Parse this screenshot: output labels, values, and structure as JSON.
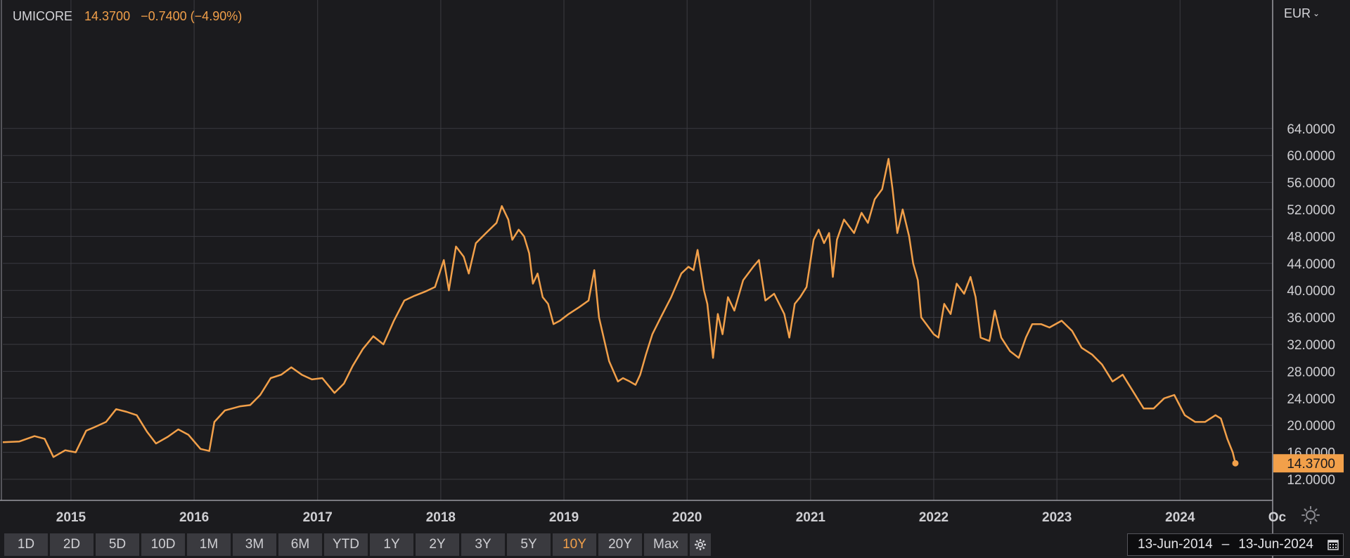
{
  "header": {
    "symbol": "UMICORE",
    "price": "14.3700",
    "change": "−0.7400 (−4.90%)"
  },
  "currency_selector": {
    "label": "EUR"
  },
  "range_buttons": [
    {
      "label": "1D",
      "active": false
    },
    {
      "label": "2D",
      "active": false
    },
    {
      "label": "5D",
      "active": false
    },
    {
      "label": "10D",
      "active": false
    },
    {
      "label": "1M",
      "active": false
    },
    {
      "label": "3M",
      "active": false
    },
    {
      "label": "6M",
      "active": false
    },
    {
      "label": "YTD",
      "active": false
    },
    {
      "label": "1Y",
      "active": false
    },
    {
      "label": "2Y",
      "active": false
    },
    {
      "label": "3Y",
      "active": false
    },
    {
      "label": "5Y",
      "active": false
    },
    {
      "label": "10Y",
      "active": true
    },
    {
      "label": "20Y",
      "active": false
    },
    {
      "label": "Max",
      "active": false
    }
  ],
  "date_range": {
    "start": "13-Jun-2014",
    "end": "13-Jun-2024",
    "separator": "–"
  },
  "icons": {
    "settings": "gear-icon",
    "calendar": "calendar-icon",
    "chart_settings": "sun-gear-icon"
  },
  "colors": {
    "background": "#1b1b1e",
    "line": "#f2a04a",
    "grid": "#3b3b40",
    "text": "#cfcfd3"
  },
  "chart_data": {
    "type": "line",
    "title": "",
    "xlabel": "",
    "ylabel": "",
    "x_tick_labels": [
      "2015",
      "2016",
      "2017",
      "2018",
      "2019",
      "2020",
      "2021",
      "2022",
      "2023",
      "2024",
      "Oc"
    ],
    "y_tick_labels": [
      "12.0000",
      "16.0000",
      "20.0000",
      "24.0000",
      "28.0000",
      "32.0000",
      "36.0000",
      "40.0000",
      "44.0000",
      "48.0000",
      "52.0000",
      "56.0000",
      "60.0000",
      "64.0000"
    ],
    "ylim": [
      10,
      66
    ],
    "xlim": [
      "2014-06-13",
      "2024-10-31"
    ],
    "last_value_label": "14.3700",
    "grid": true,
    "series": [
      {
        "values": [
          [
            "2014-06-13",
            17.5
          ],
          [
            "2014-08-01",
            17.6
          ],
          [
            "2014-09-15",
            18.4
          ],
          [
            "2014-10-15",
            18.0
          ],
          [
            "2014-11-10",
            15.3
          ],
          [
            "2014-12-15",
            16.3
          ],
          [
            "2015-01-15",
            16.0
          ],
          [
            "2015-02-15",
            19.2
          ],
          [
            "2015-03-15",
            19.8
          ],
          [
            "2015-04-15",
            20.5
          ],
          [
            "2015-05-15",
            22.4
          ],
          [
            "2015-06-15",
            22.0
          ],
          [
            "2015-07-15",
            21.5
          ],
          [
            "2015-08-15",
            19.0
          ],
          [
            "2015-09-10",
            17.3
          ],
          [
            "2015-10-15",
            18.3
          ],
          [
            "2015-11-15",
            19.4
          ],
          [
            "2015-12-15",
            18.6
          ],
          [
            "2016-01-20",
            16.5
          ],
          [
            "2016-02-15",
            16.2
          ],
          [
            "2016-03-01",
            20.5
          ],
          [
            "2016-04-01",
            22.2
          ],
          [
            "2016-05-15",
            22.8
          ],
          [
            "2016-06-15",
            23.0
          ],
          [
            "2016-07-15",
            24.5
          ],
          [
            "2016-08-15",
            27.0
          ],
          [
            "2016-09-15",
            27.5
          ],
          [
            "2016-10-15",
            28.6
          ],
          [
            "2016-11-15",
            27.5
          ],
          [
            "2016-12-15",
            26.8
          ],
          [
            "2017-01-15",
            27.0
          ],
          [
            "2017-02-20",
            24.8
          ],
          [
            "2017-03-20",
            26.2
          ],
          [
            "2017-04-15",
            28.8
          ],
          [
            "2017-05-15",
            31.3
          ],
          [
            "2017-06-15",
            33.2
          ],
          [
            "2017-07-15",
            32.0
          ],
          [
            "2017-08-15",
            35.5
          ],
          [
            "2017-09-15",
            38.5
          ],
          [
            "2017-10-15",
            39.2
          ],
          [
            "2017-11-15",
            39.8
          ],
          [
            "2017-12-15",
            40.5
          ],
          [
            "2018-01-10",
            44.5
          ],
          [
            "2018-01-25",
            40.0
          ],
          [
            "2018-02-15",
            46.5
          ],
          [
            "2018-03-10",
            45.0
          ],
          [
            "2018-03-25",
            42.5
          ],
          [
            "2018-04-15",
            47.0
          ],
          [
            "2018-05-15",
            48.5
          ],
          [
            "2018-06-15",
            50.0
          ],
          [
            "2018-07-01",
            52.5
          ],
          [
            "2018-07-20",
            50.5
          ],
          [
            "2018-08-01",
            47.5
          ],
          [
            "2018-08-20",
            49.0
          ],
          [
            "2018-09-05",
            48.0
          ],
          [
            "2018-09-20",
            45.5
          ],
          [
            "2018-10-01",
            41.0
          ],
          [
            "2018-10-15",
            42.5
          ],
          [
            "2018-10-30",
            39.0
          ],
          [
            "2018-11-15",
            38.0
          ],
          [
            "2018-12-01",
            35.0
          ],
          [
            "2018-12-20",
            35.5
          ],
          [
            "2019-01-15",
            36.5
          ],
          [
            "2019-02-15",
            37.5
          ],
          [
            "2019-03-15",
            38.5
          ],
          [
            "2019-04-01",
            43.0
          ],
          [
            "2019-04-15",
            36.0
          ],
          [
            "2019-05-15",
            29.5
          ],
          [
            "2019-06-10",
            26.5
          ],
          [
            "2019-06-25",
            27.0
          ],
          [
            "2019-07-15",
            26.5
          ],
          [
            "2019-08-01",
            26.0
          ],
          [
            "2019-08-15",
            27.5
          ],
          [
            "2019-09-01",
            30.5
          ],
          [
            "2019-09-20",
            33.5
          ],
          [
            "2019-10-15",
            36.0
          ],
          [
            "2019-11-15",
            39.0
          ],
          [
            "2019-12-15",
            42.5
          ],
          [
            "2020-01-05",
            43.5
          ],
          [
            "2020-01-20",
            43.0
          ],
          [
            "2020-02-01",
            46.0
          ],
          [
            "2020-02-20",
            40.0
          ],
          [
            "2020-03-01",
            38.0
          ],
          [
            "2020-03-18",
            30.0
          ],
          [
            "2020-04-01",
            36.5
          ],
          [
            "2020-04-15",
            33.5
          ],
          [
            "2020-05-01",
            39.0
          ],
          [
            "2020-05-20",
            37.0
          ],
          [
            "2020-06-15",
            41.5
          ],
          [
            "2020-07-15",
            43.5
          ],
          [
            "2020-08-01",
            44.5
          ],
          [
            "2020-08-20",
            38.5
          ],
          [
            "2020-09-15",
            39.5
          ],
          [
            "2020-10-15",
            36.5
          ],
          [
            "2020-10-30",
            33.0
          ],
          [
            "2020-11-15",
            38.0
          ],
          [
            "2020-12-01",
            39.0
          ],
          [
            "2020-12-20",
            40.5
          ],
          [
            "2021-01-10",
            47.5
          ],
          [
            "2021-01-25",
            49.0
          ],
          [
            "2021-02-10",
            47.0
          ],
          [
            "2021-02-25",
            48.5
          ],
          [
            "2021-03-08",
            42.0
          ],
          [
            "2021-03-20",
            47.5
          ],
          [
            "2021-04-10",
            50.5
          ],
          [
            "2021-05-10",
            48.5
          ],
          [
            "2021-06-01",
            51.5
          ],
          [
            "2021-06-20",
            50.0
          ],
          [
            "2021-07-10",
            53.5
          ],
          [
            "2021-08-01",
            55.0
          ],
          [
            "2021-08-20",
            59.5
          ],
          [
            "2021-09-01",
            55.0
          ],
          [
            "2021-09-15",
            48.5
          ],
          [
            "2021-10-01",
            52.0
          ],
          [
            "2021-10-20",
            48.0
          ],
          [
            "2021-11-01",
            44.0
          ],
          [
            "2021-11-15",
            41.5
          ],
          [
            "2021-11-25",
            36.0
          ],
          [
            "2021-12-10",
            35.0
          ],
          [
            "2022-01-01",
            33.5
          ],
          [
            "2022-01-15",
            33.0
          ],
          [
            "2022-02-01",
            38.0
          ],
          [
            "2022-02-20",
            36.5
          ],
          [
            "2022-03-10",
            41.0
          ],
          [
            "2022-04-01",
            39.5
          ],
          [
            "2022-04-20",
            42.0
          ],
          [
            "2022-05-05",
            39.0
          ],
          [
            "2022-05-20",
            33.0
          ],
          [
            "2022-06-15",
            32.5
          ],
          [
            "2022-07-01",
            37.0
          ],
          [
            "2022-07-20",
            33.0
          ],
          [
            "2022-08-15",
            31.0
          ],
          [
            "2022-09-10",
            30.0
          ],
          [
            "2022-10-01",
            33.0
          ],
          [
            "2022-10-20",
            35.0
          ],
          [
            "2022-11-15",
            35.0
          ],
          [
            "2022-12-10",
            34.5
          ],
          [
            "2023-01-15",
            35.5
          ],
          [
            "2023-02-15",
            34.0
          ],
          [
            "2023-03-15",
            31.5
          ],
          [
            "2023-04-15",
            30.5
          ],
          [
            "2023-05-15",
            29.0
          ],
          [
            "2023-06-15",
            26.5
          ],
          [
            "2023-07-15",
            27.5
          ],
          [
            "2023-08-15",
            25.0
          ],
          [
            "2023-09-15",
            22.5
          ],
          [
            "2023-10-15",
            22.5
          ],
          [
            "2023-11-15",
            24.0
          ],
          [
            "2023-12-15",
            24.5
          ],
          [
            "2024-01-15",
            21.5
          ],
          [
            "2024-02-15",
            20.5
          ],
          [
            "2024-03-15",
            20.5
          ],
          [
            "2024-04-15",
            21.5
          ],
          [
            "2024-05-01",
            21.0
          ],
          [
            "2024-05-20",
            18.0
          ],
          [
            "2024-06-05",
            16.0
          ],
          [
            "2024-06-13",
            14.37
          ]
        ]
      }
    ]
  }
}
